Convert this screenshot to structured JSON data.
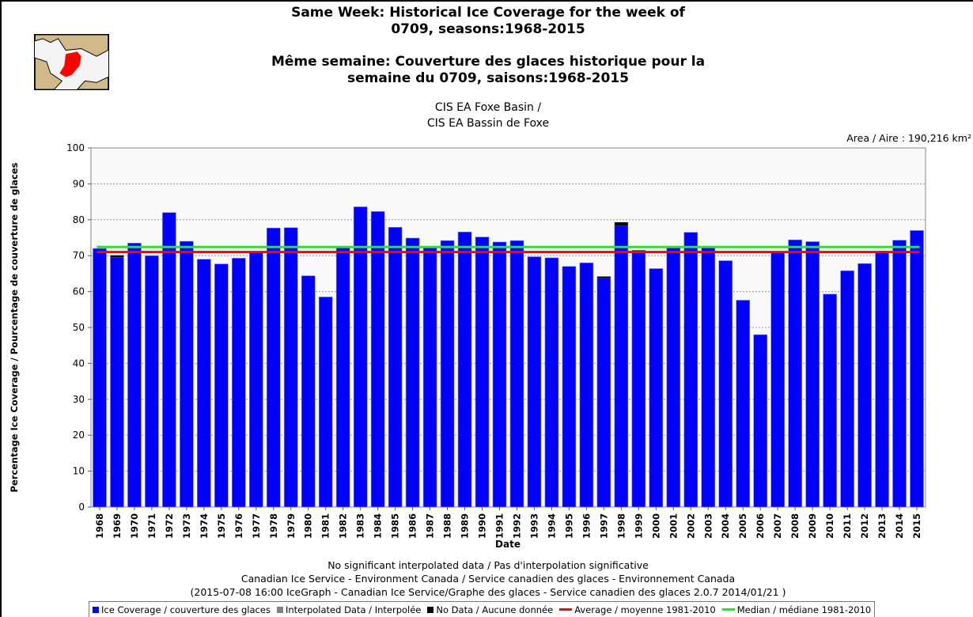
{
  "title_en_1": "Same Week: Historical Ice Coverage for the week of",
  "title_en_2": "0709, seasons:1968-2015",
  "title_fr_1": "Même semaine: Couverture des glaces historique pour la",
  "title_fr_2": "semaine du 0709, saisons:1968-2015",
  "region_1": "CIS EA Foxe Basin /",
  "region_2": "CIS EA Bassin de Foxe",
  "area": "Area / Aire : 190,216 km²",
  "footer": [
    "No significant interpolated data / Pas d'interpolation significative",
    "Canadian Ice Service - Environment Canada / Service canadien des glaces - Environnement Canada",
    "(2015-07-08 16:00 IceGraph - Canadian Ice Service/Graphe des glaces - Service canadien des glaces 2.0.7 2014/01/21 )"
  ],
  "legend": [
    "Ice Coverage / couverture des glaces",
    "Interpolated Data / Interpolée",
    "No Data / Aucune donnée",
    "Average / moyenne 1981-2010",
    "Median / médiane 1981-2010"
  ],
  "colors": {
    "ice": "#0000ff",
    "interp": "#808080",
    "nodata": "#000000",
    "average": "#ff0000",
    "median": "#00ff00"
  },
  "chart_data": {
    "type": "bar",
    "xlabel": "Date",
    "ylabel": "Percentage Ice Coverage / Pourcentage de couverture de glaces",
    "ylim": [
      0,
      100
    ],
    "yticks": [
      0,
      10,
      20,
      30,
      40,
      50,
      60,
      70,
      80,
      90,
      100
    ],
    "grid": true,
    "legend_position": "bottom",
    "categories": [
      "1968",
      "1969",
      "1970",
      "1971",
      "1972",
      "1973",
      "1974",
      "1975",
      "1976",
      "1977",
      "1978",
      "1979",
      "1980",
      "1981",
      "1982",
      "1983",
      "1984",
      "1985",
      "1986",
      "1987",
      "1988",
      "1989",
      "1990",
      "1991",
      "1992",
      "1993",
      "1994",
      "1995",
      "1996",
      "1997",
      "1998",
      "1999",
      "2000",
      "2001",
      "2002",
      "2003",
      "2004",
      "2005",
      "2006",
      "2007",
      "2008",
      "2009",
      "2010",
      "2011",
      "2012",
      "2013",
      "2014",
      "2015"
    ],
    "series": [
      {
        "name": "Ice Coverage / couverture des glaces",
        "values": [
          72.0,
          69.6,
          73.5,
          70.0,
          82.0,
          74.0,
          69.0,
          67.7,
          69.3,
          70.8,
          77.7,
          77.8,
          64.4,
          58.5,
          72.3,
          83.6,
          82.3,
          77.9,
          74.9,
          72.6,
          74.2,
          76.6,
          75.2,
          73.8,
          74.2,
          69.7,
          69.4,
          67.0,
          68.0,
          63.9,
          78.3,
          71.3,
          66.4,
          72.5,
          76.5,
          72.5,
          68.6,
          57.6,
          48.0,
          71.1,
          74.4,
          73.9,
          59.3,
          65.8,
          67.8,
          71.3,
          74.3,
          77.0
        ]
      },
      {
        "name": "No Data / Aucune donnée",
        "values": [
          0,
          0.5,
          0,
          0,
          0,
          0,
          0,
          0,
          0,
          0,
          0,
          0,
          0,
          0,
          0,
          0,
          0,
          0,
          0,
          0,
          0,
          0,
          0,
          0,
          0,
          0,
          0,
          0,
          0,
          0.3,
          1.0,
          0.2,
          0,
          0,
          0,
          0,
          0,
          0,
          0,
          0,
          0,
          0,
          0,
          0,
          0,
          0,
          0,
          0
        ]
      }
    ],
    "average_1981_2010": 71.0,
    "median_1981_2010": 72.4
  }
}
